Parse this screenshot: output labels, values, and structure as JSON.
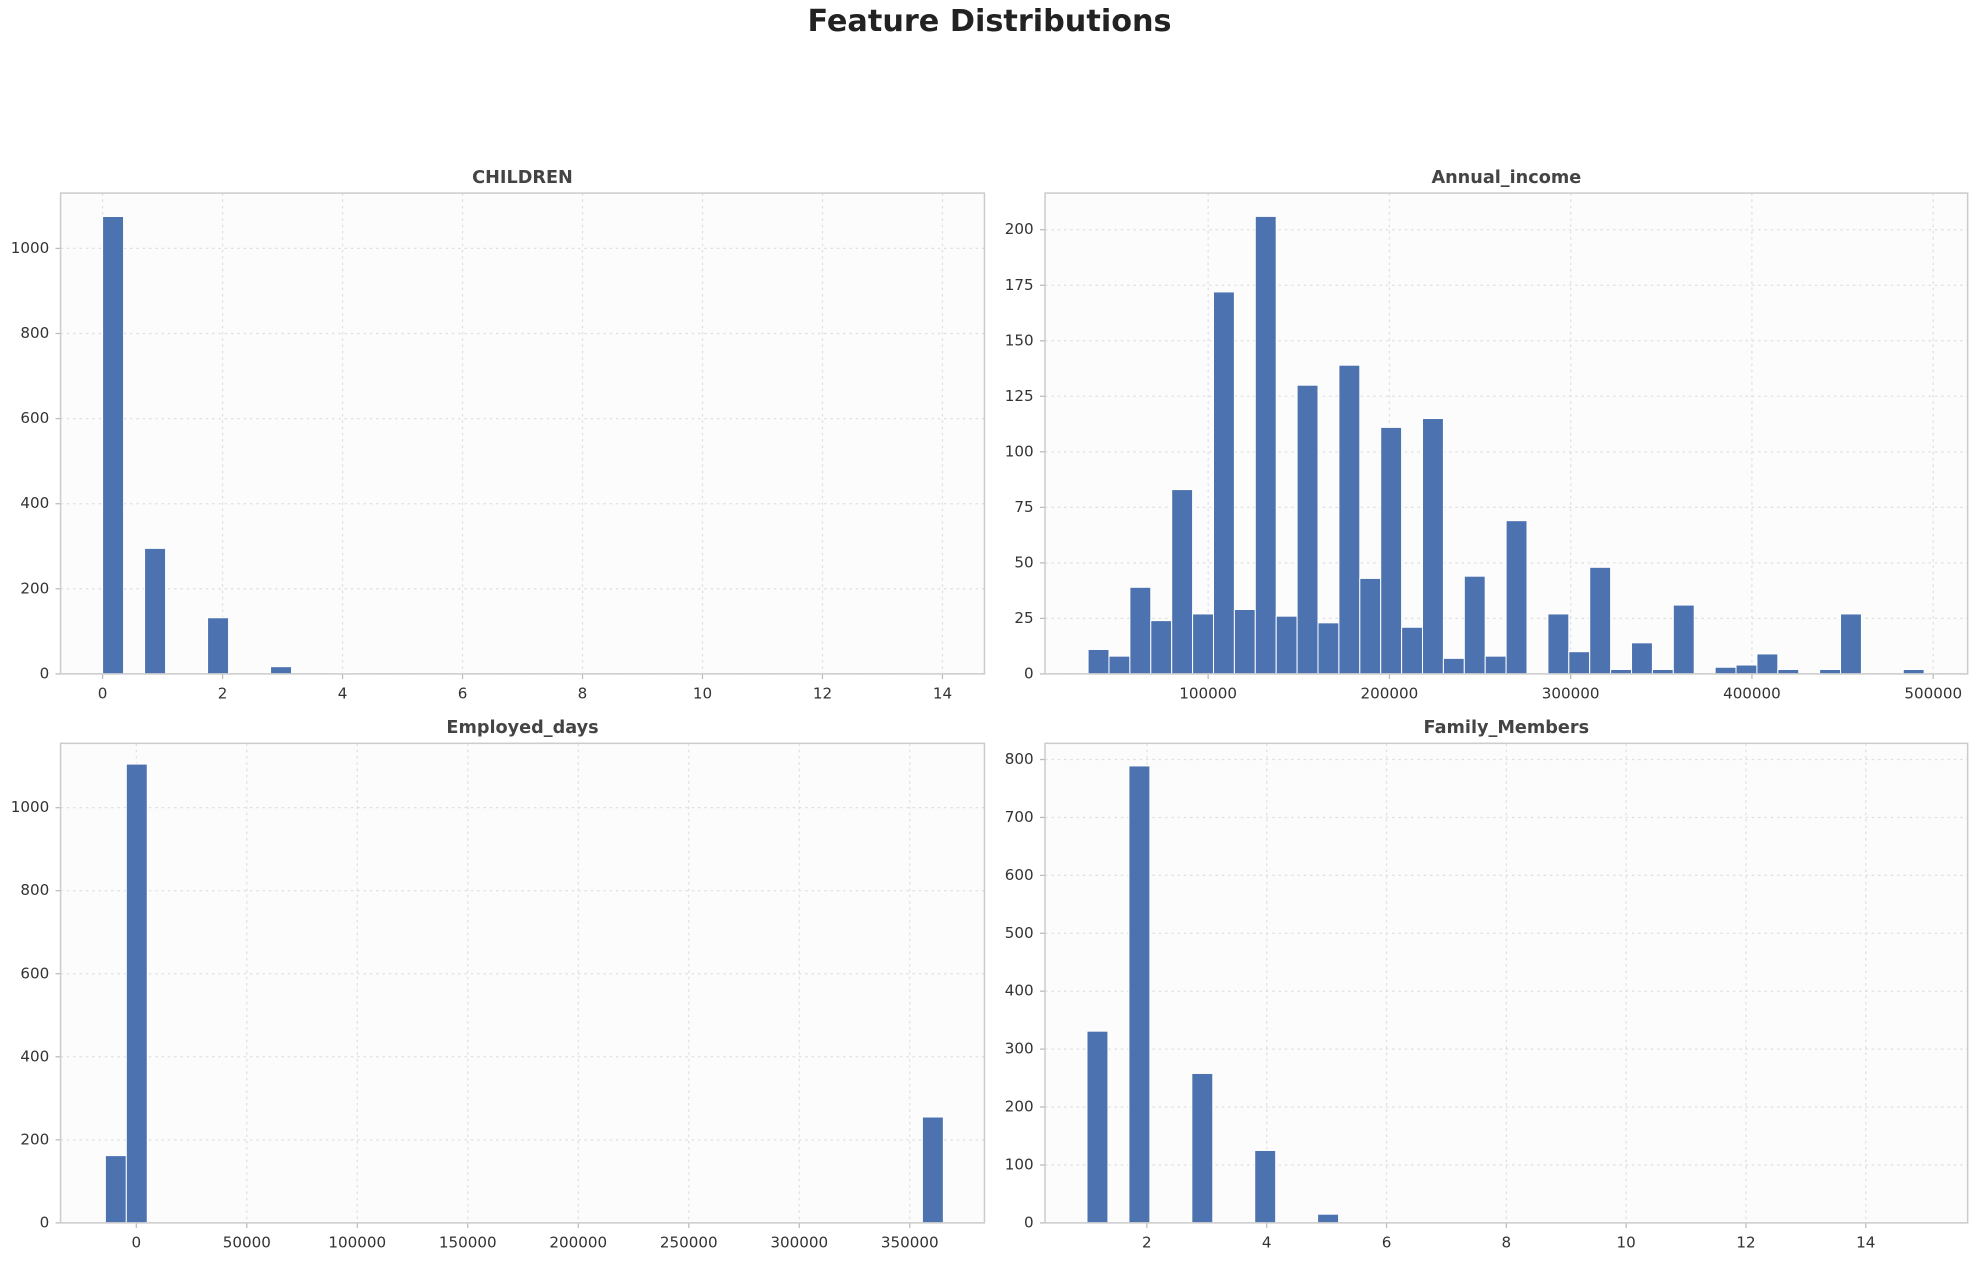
{
  "title": "Feature Distributions",
  "chart_data": [
    {
      "type": "histogram",
      "title": "CHILDREN",
      "color": "#4c72b0",
      "grid": true,
      "bins": [
        0,
        0.35,
        0.7,
        1.05,
        1.4,
        1.75,
        2.1,
        2.45,
        2.8,
        3.15,
        3.5,
        3.85,
        4.2,
        4.55,
        4.9,
        5.25,
        5.6,
        5.95,
        6.3,
        6.65,
        7,
        7.35,
        7.7,
        8.05,
        8.4,
        8.75,
        9.1,
        9.45,
        9.8,
        10.15,
        10.5,
        10.85,
        11.2,
        11.55,
        11.9,
        12.25,
        12.6,
        12.95,
        13.3,
        13.65,
        14
      ],
      "values": [
        1075,
        0,
        295,
        0,
        0,
        132,
        0,
        0,
        17,
        0,
        0,
        2,
        0,
        0,
        0,
        0,
        0,
        0,
        0,
        0,
        0,
        0,
        0,
        0,
        0,
        0,
        0,
        0,
        0,
        0,
        0,
        0,
        0,
        0,
        0,
        0,
        0,
        0,
        0,
        1
      ],
      "xlim": [
        -0.7,
        14.7
      ],
      "ylim": [
        0,
        1130
      ],
      "xticks": [
        0,
        2,
        4,
        6,
        8,
        10,
        12,
        14
      ],
      "yticks": [
        0,
        200,
        400,
        600,
        800,
        1000
      ]
    },
    {
      "type": "histogram",
      "title": "Annual_income",
      "color": "#4c72b0",
      "grid": true,
      "bins": [
        33750,
        45281.25,
        56812.5,
        68343.75,
        79875,
        91406.25,
        102937.5,
        114468.75,
        126000,
        137531.25,
        149062.5,
        160593.75,
        172125,
        183656.25,
        195187.5,
        206718.75,
        218250,
        229781.25,
        241312.5,
        252843.75,
        264375,
        275906.25,
        287437.5,
        298968.75,
        310500,
        322031.25,
        333562.5,
        345093.75,
        356625,
        368156.25,
        379687.5,
        391218.75,
        402750,
        414281.25,
        425812.5,
        437343.75,
        448875,
        460406.25,
        471937.5,
        483468.75,
        495000
      ],
      "values": [
        11,
        8,
        39,
        24,
        83,
        27,
        172,
        29,
        206,
        26,
        130,
        23,
        139,
        43,
        111,
        21,
        115,
        7,
        44,
        8,
        69,
        0,
        27,
        10,
        48,
        2,
        14,
        2,
        31,
        0,
        3,
        4,
        9,
        2,
        0,
        2,
        27,
        0,
        0,
        2
      ],
      "xlim": [
        10000,
        519000
      ],
      "ylim": [
        0,
        216.5
      ],
      "xticks": [
        100000,
        200000,
        300000,
        400000,
        500000
      ],
      "yticks": [
        0,
        25,
        50,
        75,
        100,
        125,
        150,
        175,
        200
      ]
    },
    {
      "type": "histogram",
      "title": "Employed_days",
      "color": "#4c72b0",
      "grid": true,
      "bins": [
        -14000,
        -4520,
        4960,
        14440,
        23920,
        33400,
        42880,
        52360,
        61840,
        71320,
        80800,
        90280,
        99760,
        109240,
        118720,
        128200,
        137680,
        147160,
        156640,
        166120,
        175600,
        185080,
        194560,
        204040,
        213520,
        223000,
        232480,
        241960,
        251440,
        260920,
        270400,
        279880,
        289360,
        298840,
        308320,
        317800,
        327280,
        336760,
        346240,
        355720,
        365200
      ],
      "values": [
        162,
        1105,
        0,
        0,
        0,
        0,
        0,
        0,
        0,
        0,
        0,
        0,
        0,
        0,
        0,
        0,
        0,
        0,
        0,
        0,
        0,
        0,
        0,
        0,
        0,
        0,
        0,
        0,
        0,
        0,
        0,
        0,
        0,
        0,
        0,
        0,
        0,
        0,
        0,
        255
      ],
      "xlim": [
        -34270,
        383800
      ],
      "ylim": [
        0,
        1155
      ],
      "xticks": [
        0,
        50000,
        100000,
        150000,
        200000,
        250000,
        300000,
        350000
      ],
      "yticks": [
        0,
        200,
        400,
        600,
        800,
        1000
      ]
    },
    {
      "type": "histogram",
      "title": "Family_Members",
      "color": "#4c72b0",
      "grid": true,
      "bins": [
        1,
        1.35,
        1.7,
        2.05,
        2.4,
        2.75,
        3.1,
        3.45,
        3.8,
        4.15,
        4.5,
        4.85,
        5.2,
        5.55,
        5.9,
        6.25,
        6.6,
        6.95,
        7.3,
        7.65,
        8,
        8.35,
        8.7,
        9.05,
        9.4,
        9.75,
        10.1,
        10.45,
        10.8,
        11.15,
        11.5,
        11.85,
        12.2,
        12.55,
        12.9,
        13.25,
        13.6,
        13.95,
        14.3,
        14.65,
        15
      ],
      "values": [
        331,
        0,
        789,
        0,
        0,
        258,
        0,
        0,
        125,
        0,
        0,
        15,
        0,
        0,
        0,
        0,
        0,
        0,
        0,
        0,
        0,
        0,
        0,
        0,
        0,
        0,
        0,
        0,
        0,
        0,
        0,
        0,
        0,
        0,
        0,
        0,
        0,
        0,
        0,
        1
      ],
      "xlim": [
        0.3,
        15.7
      ],
      "ylim": [
        0,
        828
      ],
      "xticks": [
        2,
        4,
        6,
        8,
        10,
        12,
        14
      ],
      "yticks": [
        0,
        100,
        200,
        300,
        400,
        500,
        600,
        700,
        800
      ]
    }
  ]
}
